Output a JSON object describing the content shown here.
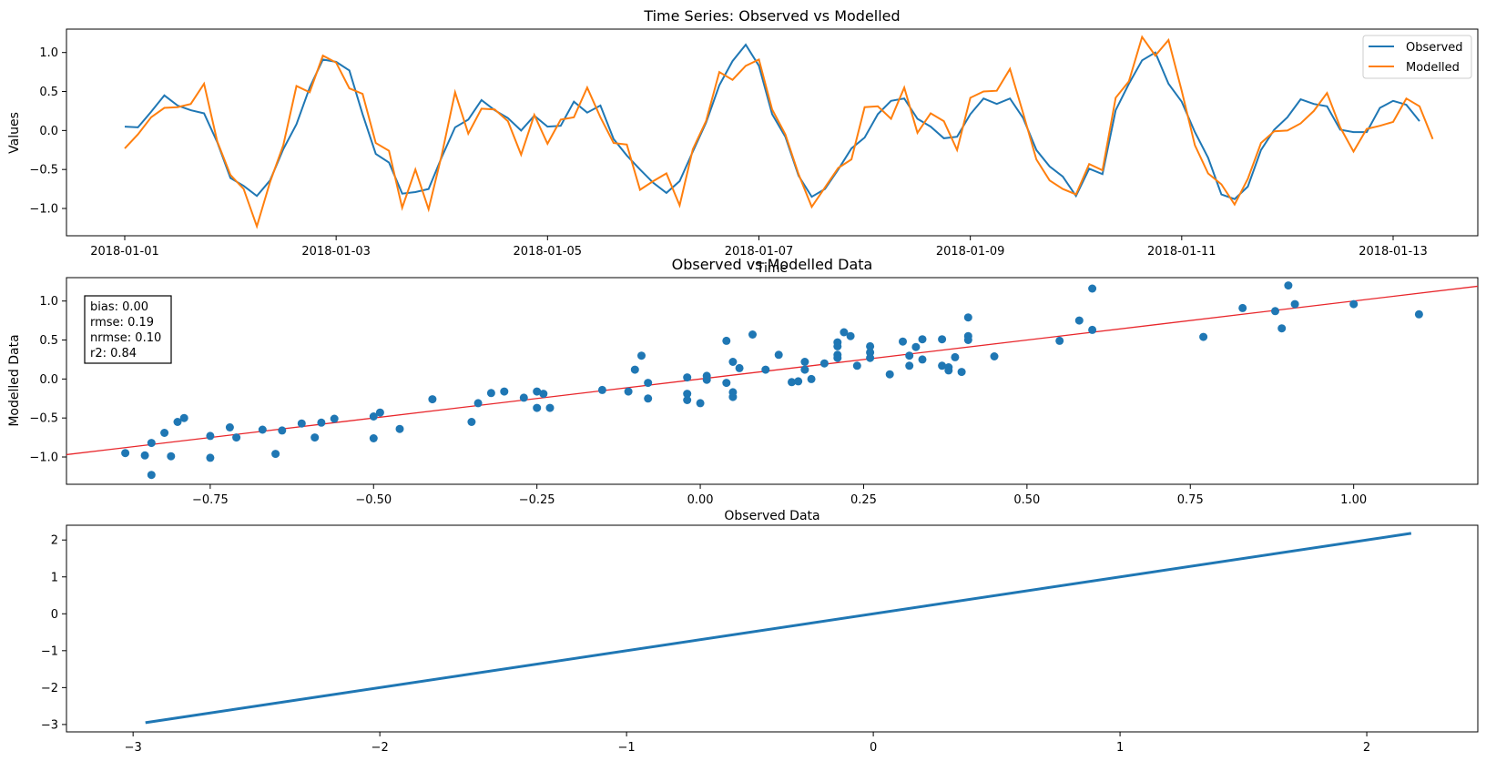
{
  "colors": {
    "observed": "#1f77b4",
    "modelled": "#ff7f0e",
    "fit_line": "#e8262b",
    "scatter": "#1f77b4"
  },
  "chart_data": [
    {
      "type": "line",
      "title": "Time Series: Observed vs Modelled",
      "xlabel": "Time",
      "ylabel": "Values",
      "x_start": "2018-01-01T00:00",
      "x_step_hours": 3,
      "xticks": [
        "2018-01-01",
        "2018-01-03",
        "2018-01-05",
        "2018-01-07",
        "2018-01-09",
        "2018-01-11",
        "2018-01-13"
      ],
      "yticks": [
        "1.0",
        "0.5",
        "0.0",
        "−0.5",
        "−1.0"
      ],
      "ylim": [
        -1.35,
        1.3
      ],
      "legend_position": "top-right",
      "series": [
        {
          "name": "Observed",
          "values": [
            0.05,
            0.04,
            0.24,
            0.45,
            0.32,
            0.26,
            0.22,
            -0.15,
            -0.61,
            -0.71,
            -0.84,
            -0.64,
            -0.24,
            0.08,
            0.55,
            0.91,
            0.88,
            0.77,
            0.21,
            -0.3,
            -0.41,
            -0.81,
            -0.79,
            -0.75,
            -0.34,
            0.04,
            0.14,
            0.39,
            0.26,
            0.16,
            0.0,
            0.19,
            0.05,
            0.06,
            0.37,
            0.23,
            0.32,
            -0.11,
            -0.32,
            -0.5,
            -0.67,
            -0.8,
            -0.65,
            -0.27,
            0.1,
            0.58,
            0.89,
            1.1,
            0.83,
            0.21,
            -0.08,
            -0.58,
            -0.85,
            -0.75,
            -0.5,
            -0.23,
            -0.09,
            0.21,
            0.38,
            0.41,
            0.15,
            0.05,
            -0.1,
            -0.08,
            0.21,
            0.41,
            0.34,
            0.41,
            0.16,
            -0.25,
            -0.46,
            -0.59,
            -0.84,
            -0.49,
            -0.56,
            0.26,
            0.6,
            0.9,
            1.0,
            0.6,
            0.37,
            -0.02,
            -0.35,
            -0.82,
            -0.88,
            -0.72,
            -0.25,
            0.01,
            0.17,
            0.4,
            0.34,
            0.31,
            0.01,
            -0.02,
            -0.02,
            0.29,
            0.38,
            0.33,
            0.12
          ]
        },
        {
          "name": "Modelled",
          "values": [
            -0.23,
            -0.05,
            0.17,
            0.29,
            0.3,
            0.34,
            0.6,
            -0.14,
            -0.57,
            -0.75,
            -1.23,
            -0.66,
            -0.19,
            0.57,
            0.49,
            0.96,
            0.87,
            0.54,
            0.47,
            -0.16,
            -0.26,
            -0.99,
            -0.5,
            -1.01,
            -0.31,
            0.49,
            -0.04,
            0.28,
            0.27,
            0.12,
            -0.31,
            0.2,
            -0.17,
            0.14,
            0.17,
            0.55,
            0.17,
            -0.16,
            -0.18,
            -0.76,
            -0.65,
            -0.55,
            -0.96,
            -0.24,
            0.12,
            0.75,
            0.65,
            0.83,
            0.91,
            0.27,
            -0.05,
            -0.56,
            -0.98,
            -0.73,
            -0.48,
            -0.37,
            0.3,
            0.31,
            0.15,
            0.55,
            -0.03,
            0.22,
            0.12,
            -0.25,
            0.42,
            0.5,
            0.51,
            0.79,
            0.22,
            -0.37,
            -0.64,
            -0.75,
            -0.82,
            -0.43,
            -0.51,
            0.42,
            0.63,
            1.2,
            0.96,
            1.16,
            0.51,
            -0.19,
            -0.55,
            -0.69,
            -0.95,
            -0.62,
            -0.16,
            -0.01,
            0.0,
            0.09,
            0.25,
            0.48,
            0.04,
            -0.27,
            0.02,
            0.06,
            0.11,
            0.41,
            0.31,
            -0.11
          ]
        }
      ]
    },
    {
      "type": "scatter",
      "title": "Observed vs Modelled Data",
      "xlabel": "Observed Data",
      "ylabel": "Modelled Data",
      "xlim": [
        -0.97,
        1.19
      ],
      "ylim": [
        -1.35,
        1.3
      ],
      "xticks": [
        "−0.75",
        "−0.50",
        "−0.25",
        "0.00",
        "0.25",
        "0.50",
        "0.75",
        "1.00"
      ],
      "yticks": [
        "1.0",
        "0.5",
        "0.0",
        "−0.5",
        "−1.0"
      ],
      "fit_line": {
        "slope": 1.0,
        "intercept": 0.0
      },
      "stats": [
        "bias: 0.00",
        "rmse: 0.19",
        "nrmse: 0.10",
        "r2: 0.84"
      ],
      "stats_position": "top-left"
    },
    {
      "type": "line",
      "title": "",
      "xlabel": "",
      "ylabel": "",
      "x": [
        -2.95,
        2.18
      ],
      "y": [
        -2.95,
        2.18
      ],
      "xlim": [
        -3.27,
        2.45
      ],
      "ylim": [
        -3.2,
        2.4
      ],
      "xticks": [
        "−3",
        "−2",
        "−1",
        "0",
        "1",
        "2"
      ],
      "yticks": [
        "2",
        "1",
        "0",
        "−1",
        "−2",
        "−3"
      ]
    }
  ]
}
